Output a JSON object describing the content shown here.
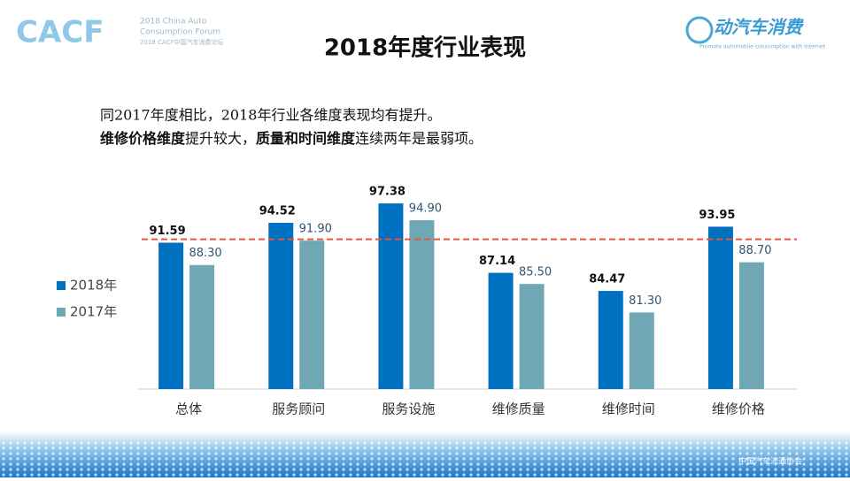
{
  "header": {
    "left_logo": "CACF",
    "left_logo_line1": "2018 China Auto",
    "left_logo_line2": "Consumption Forum",
    "left_logo_line3": "2018 CACF中国汽车消费论坛",
    "right_logo": "动汽车消费",
    "right_logo_sub": "Promote automobile consumption with Internet"
  },
  "footer": {
    "logo": "中国汽车流通协会"
  },
  "summary": {
    "line1": "同2017年度相比，2018年行业各维度表现均有提升。",
    "line2": [
      {
        "text": "维修价格维度",
        "bold": true
      },
      {
        "text": "提升较大，",
        "bold": false
      },
      {
        "text": "质量和时间维度",
        "bold": true
      },
      {
        "text": "连续两年是最弱项。",
        "bold": false
      }
    ]
  },
  "chart_data": {
    "type": "bar",
    "title": "2018年度行业表现",
    "categories": [
      "总体",
      "服务顾问",
      "服务设施",
      "维修质量",
      "维修时间",
      "维修价格"
    ],
    "series": [
      {
        "name": "2018年",
        "color": "#0070c0",
        "values": [
          91.59,
          94.52,
          97.38,
          87.14,
          84.47,
          93.95
        ]
      },
      {
        "name": "2017年",
        "color": "#6fa7b5",
        "values": [
          88.3,
          91.9,
          94.9,
          85.5,
          81.3,
          88.7
        ],
        "value_labels": [
          "88.30",
          "91.90",
          "94.90",
          "85.50",
          "81.30",
          "88.70"
        ]
      }
    ],
    "ylim": [
      70,
      100
    ],
    "reference_line": {
      "value": 92.1,
      "color": "#e8553a"
    },
    "legend": "left"
  }
}
